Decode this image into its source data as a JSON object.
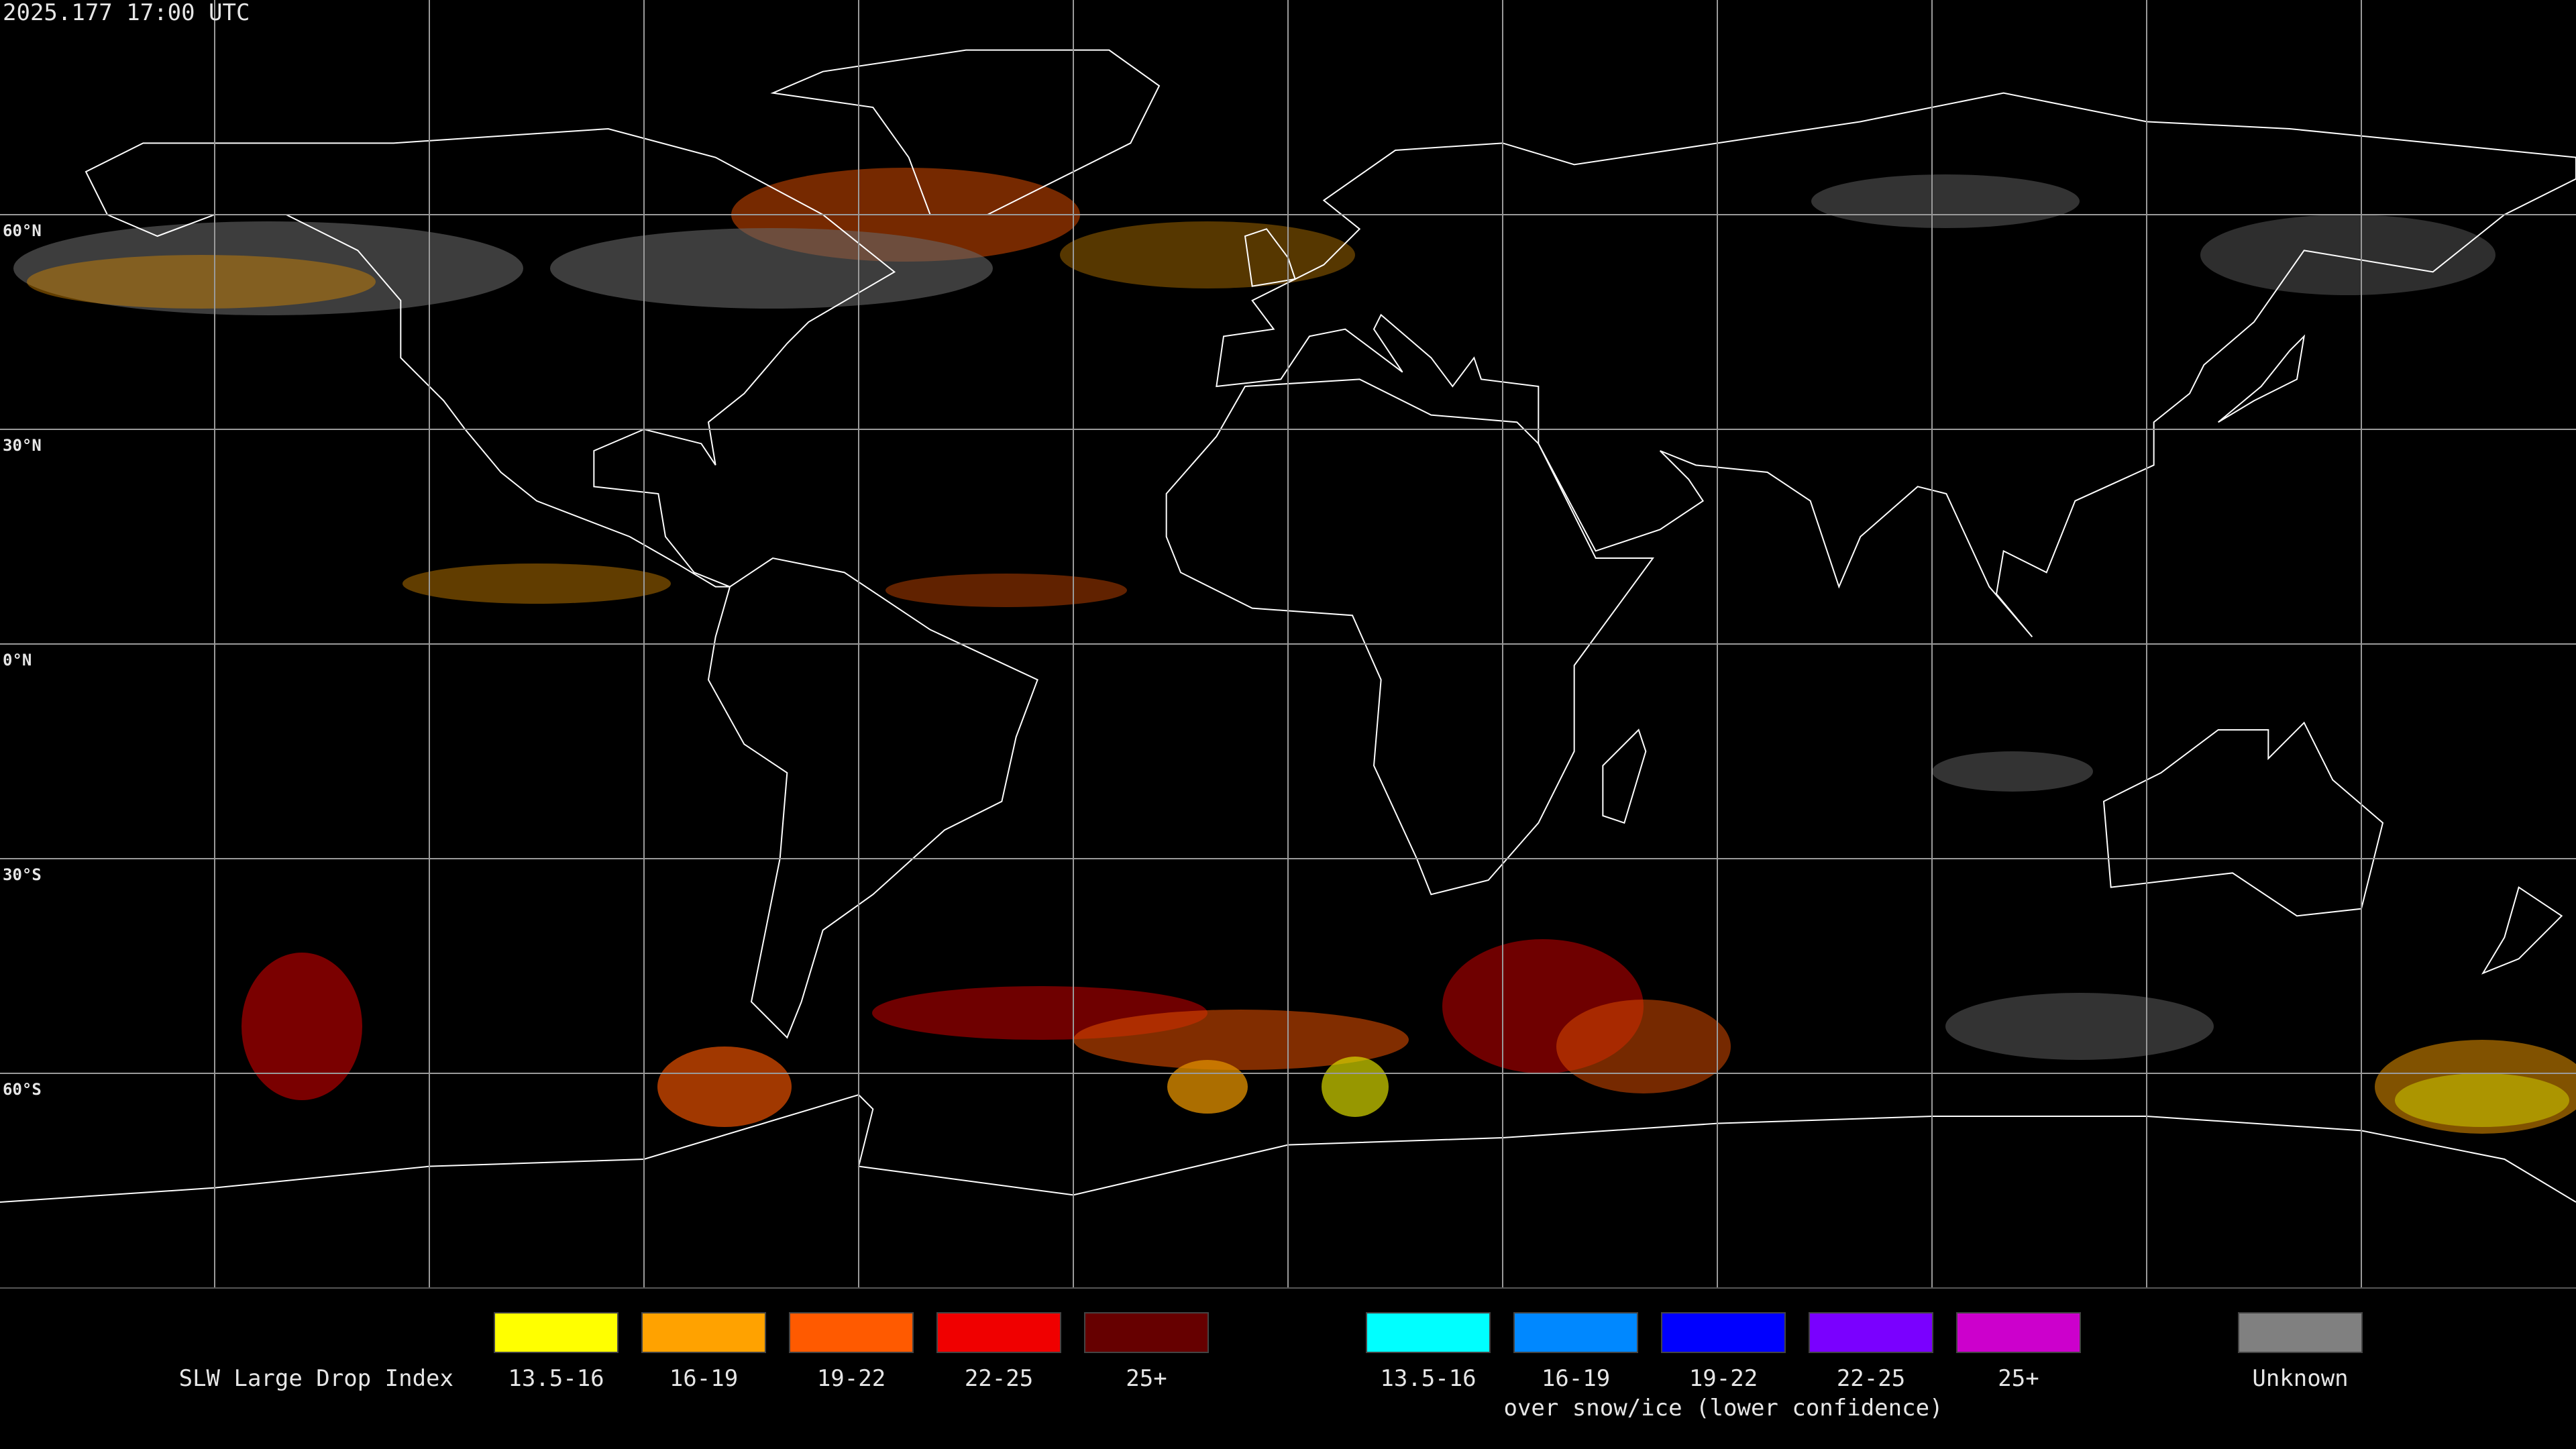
{
  "timestamp": "2025.177 17:00 UTC",
  "latitude_labels": [
    "60°N",
    "30°N",
    "0°N",
    "30°S",
    "60°S"
  ],
  "legend": {
    "title": "SLW Large Drop Index",
    "groups": [
      {
        "items": [
          {
            "label": "13.5-16",
            "color": "#ffff00"
          },
          {
            "label": "16-19",
            "color": "#ffa200"
          },
          {
            "label": "19-22",
            "color": "#ff5a00"
          },
          {
            "label": "22-25",
            "color": "#f00000"
          },
          {
            "label": "25+",
            "color": "#660000"
          }
        ]
      },
      {
        "items": [
          {
            "label": "13.5-16",
            "color": "#00ffff"
          },
          {
            "label": "16-19",
            "color": "#0088ff"
          },
          {
            "label": "19-22",
            "color": "#0000ff"
          },
          {
            "label": "22-25",
            "color": "#7a00ff"
          },
          {
            "label": "25+",
            "color": "#cc00cc"
          }
        ],
        "caption": "over snow/ice (lower confidence)"
      },
      {
        "items": [
          {
            "label": "Unknown",
            "color": "#808080"
          }
        ]
      }
    ]
  }
}
